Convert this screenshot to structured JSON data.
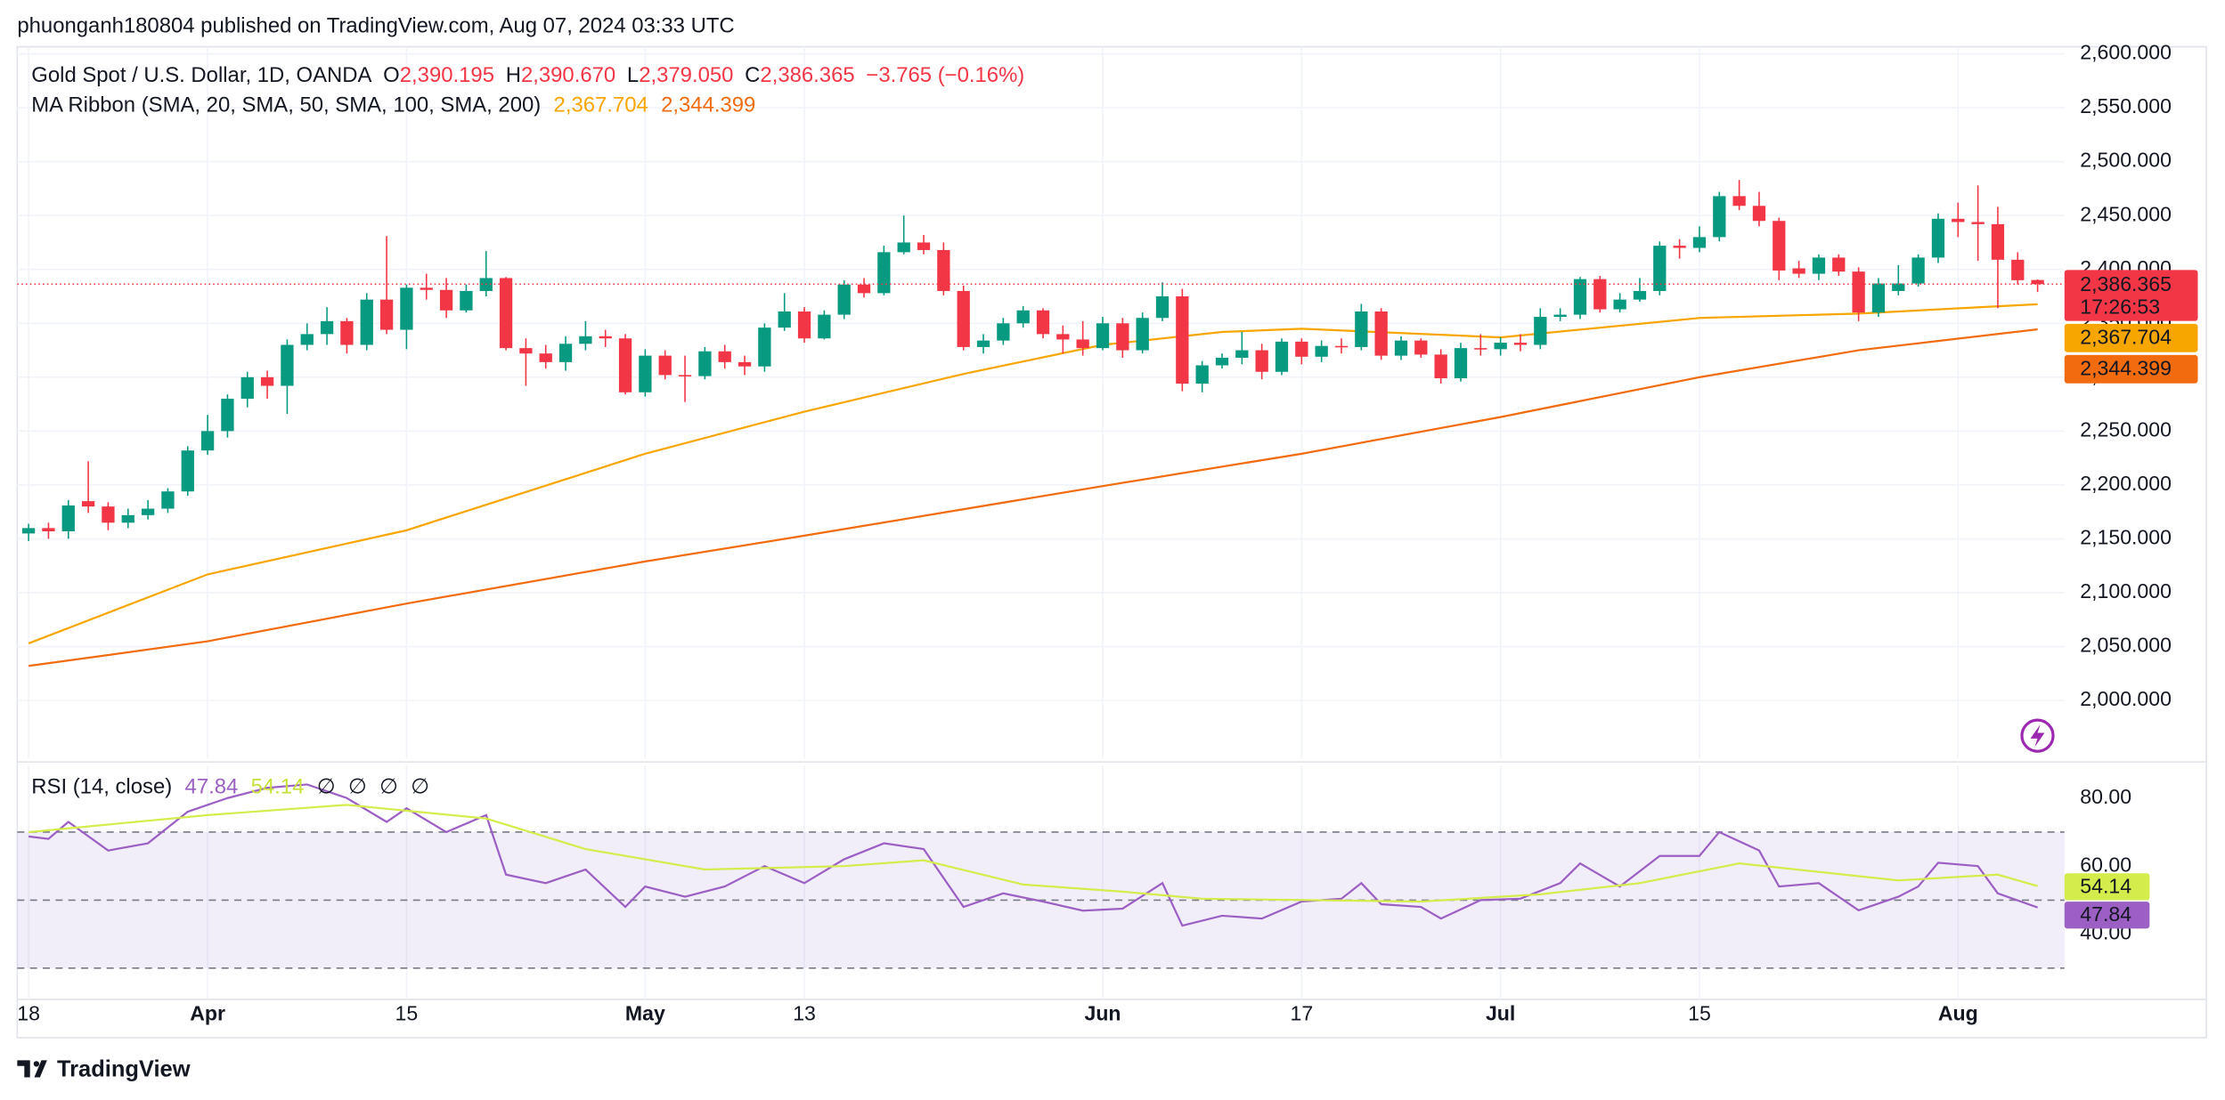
{
  "header": {
    "text": "phuonganh180804 published on TradingView.com, Aug 07, 2024 03:33 UTC"
  },
  "footer": {
    "logo": "TradingView"
  },
  "chart_data": [
    {
      "type": "candlestick",
      "title": "Gold Spot / U.S. Dollar, 1D, OANDA",
      "legend": {
        "items": [
          {
            "key": "O",
            "value": "2,390.195"
          },
          {
            "key": "H",
            "value": "2,390.670"
          },
          {
            "key": "L",
            "value": "2,379.050"
          },
          {
            "key": "C",
            "value": "2,386.365"
          }
        ],
        "change": "−3.765 (−0.16%)"
      },
      "up_color": "#089981",
      "down_color": "#f23645",
      "open": [
        2155,
        2160,
        2157,
        2185,
        2180,
        2165,
        2172,
        2178,
        2194,
        2232,
        2250,
        2280,
        2300,
        2292,
        2330,
        2340,
        2352,
        2330,
        2372,
        2344,
        2383,
        2381,
        2362,
        2380,
        2392,
        2327,
        2322,
        2314,
        2331,
        2338,
        2336,
        2286,
        2320,
        2302,
        2301,
        2324,
        2314,
        2310,
        2346,
        2361,
        2336,
        2358,
        2386,
        2378,
        2416,
        2425,
        2418,
        2380,
        2328,
        2334,
        2350,
        2362,
        2340,
        2335,
        2327,
        2350,
        2325,
        2355,
        2375,
        2294,
        2311,
        2318,
        2325,
        2305,
        2333,
        2319,
        2329,
        2328,
        2361,
        2320,
        2334,
        2321,
        2299,
        2327,
        2326,
        2332,
        2330,
        2356,
        2358,
        2391,
        2363,
        2372,
        2380,
        2422,
        2420,
        2430,
        2468,
        2459,
        2445,
        2401,
        2396,
        2411,
        2398,
        2360,
        2380,
        2387,
        2411,
        2447,
        2444,
        2442,
        2409,
        2390.195
      ],
      "high": [
        2164,
        2165,
        2186,
        2222,
        2184,
        2178,
        2186,
        2197,
        2236,
        2265,
        2284,
        2305,
        2306,
        2335,
        2350,
        2365,
        2355,
        2378,
        2431,
        2386,
        2396,
        2392,
        2386,
        2417,
        2393,
        2336,
        2330,
        2338,
        2352,
        2344,
        2340,
        2326,
        2325,
        2320,
        2328,
        2330,
        2320,
        2350,
        2378,
        2365,
        2362,
        2390,
        2392,
        2422,
        2450,
        2432,
        2425,
        2385,
        2340,
        2355,
        2366,
        2364,
        2348,
        2352,
        2356,
        2355,
        2360,
        2388,
        2382,
        2315,
        2322,
        2342,
        2331,
        2336,
        2336,
        2334,
        2336,
        2368,
        2364,
        2338,
        2336,
        2326,
        2332,
        2340,
        2337,
        2340,
        2364,
        2364,
        2393,
        2394,
        2378,
        2392,
        2426,
        2428,
        2440,
        2472,
        2483,
        2472,
        2448,
        2408,
        2414,
        2414,
        2402,
        2392,
        2404,
        2414,
        2452,
        2462,
        2478,
        2458,
        2416,
        2390.67
      ],
      "low": [
        2148,
        2150,
        2150,
        2174,
        2158,
        2160,
        2168,
        2174,
        2190,
        2228,
        2244,
        2272,
        2280,
        2266,
        2325,
        2330,
        2322,
        2325,
        2340,
        2326,
        2372,
        2355,
        2360,
        2375,
        2325,
        2292,
        2308,
        2306,
        2325,
        2328,
        2284,
        2282,
        2298,
        2277,
        2298,
        2308,
        2302,
        2305,
        2343,
        2332,
        2335,
        2354,
        2374,
        2376,
        2414,
        2414,
        2376,
        2325,
        2322,
        2330,
        2346,
        2336,
        2322,
        2320,
        2325,
        2318,
        2322,
        2352,
        2287,
        2286,
        2308,
        2312,
        2298,
        2302,
        2312,
        2314,
        2322,
        2325,
        2316,
        2316,
        2318,
        2294,
        2296,
        2320,
        2320,
        2324,
        2326,
        2352,
        2354,
        2360,
        2360,
        2370,
        2376,
        2410,
        2416,
        2426,
        2455,
        2440,
        2390,
        2392,
        2390,
        2394,
        2352,
        2356,
        2376,
        2384,
        2406,
        2430,
        2408,
        2364,
        2386,
        2379.05
      ],
      "close": [
        2160,
        2157,
        2181,
        2180,
        2165,
        2172,
        2178,
        2194,
        2232,
        2250,
        2280,
        2300,
        2292,
        2330,
        2340,
        2352,
        2330,
        2372,
        2344,
        2383,
        2381,
        2362,
        2380,
        2392,
        2327,
        2322,
        2314,
        2331,
        2338,
        2336,
        2286,
        2320,
        2302,
        2301,
        2324,
        2314,
        2310,
        2346,
        2361,
        2336,
        2358,
        2386,
        2378,
        2416,
        2425,
        2418,
        2380,
        2328,
        2334,
        2350,
        2362,
        2340,
        2335,
        2327,
        2350,
        2325,
        2355,
        2375,
        2294,
        2311,
        2318,
        2325,
        2305,
        2333,
        2319,
        2329,
        2328,
        2361,
        2320,
        2334,
        2321,
        2299,
        2327,
        2326,
        2332,
        2330,
        2356,
        2358,
        2391,
        2363,
        2372,
        2380,
        2422,
        2420,
        2430,
        2468,
        2459,
        2445,
        2399,
        2396,
        2411,
        2398,
        2360,
        2387,
        2387,
        2411,
        2447,
        2444,
        2442,
        2409,
        2390,
        2386.365
      ],
      "last_price": {
        "value": 2386.365,
        "countdown": "17:26:53",
        "color": "#f23645"
      },
      "overlay": {
        "title": "MA Ribbon (SMA, 20, SMA, 50, SMA, 100, SMA, 200)",
        "series": [
          {
            "color": "#f7a600",
            "x": [
              0,
              9,
              19,
              31,
              39,
              47,
              54,
              60,
              64,
              74,
              84,
              92,
              101
            ],
            "values": [
              2053,
              2117,
              2158,
              2229,
              2268,
              2303,
              2330,
              2342,
              2345,
              2337,
              2355,
              2359,
              2367.704
            ],
            "value_label": "2,367.704"
          },
          {
            "color": "#f26b0f",
            "x": [
              0,
              9,
              19,
              31,
              39,
              54,
              64,
              74,
              84,
              92,
              101
            ],
            "values": [
              2032,
              2055,
              2090,
              2129,
              2153,
              2199,
              2229,
              2263,
              2300,
              2325,
              2344.399
            ],
            "value_label": "2,344.399"
          }
        ]
      },
      "xlim": [
        -0.57,
        102.35
      ],
      "xticks": [
        {
          "value": 0,
          "label": "18"
        },
        {
          "value": 9,
          "label": "Apr"
        },
        {
          "value": 19,
          "label": "15"
        },
        {
          "value": 31,
          "label": "May"
        },
        {
          "value": 39,
          "label": "13"
        },
        {
          "value": 54,
          "label": "Jun"
        },
        {
          "value": 64,
          "label": "17"
        },
        {
          "value": 74,
          "label": "Jul"
        },
        {
          "value": 84,
          "label": "15"
        },
        {
          "value": 97,
          "label": "Aug"
        }
      ],
      "ylim": [
        1946.3,
        2606.6
      ],
      "yticks": [
        {
          "value": 2000,
          "label": "2,000.000"
        },
        {
          "value": 2050,
          "label": "2,050.000"
        },
        {
          "value": 2100,
          "label": "2,100.000"
        },
        {
          "value": 2150,
          "label": "2,150.000"
        },
        {
          "value": 2200,
          "label": "2,200.000"
        },
        {
          "value": 2250,
          "label": "2,250.000"
        },
        {
          "value": 2300,
          "label": "2,300.000"
        },
        {
          "value": 2350,
          "label": "2,350.000"
        },
        {
          "value": 2400,
          "label": "2,400.000"
        },
        {
          "value": 2450,
          "label": "2,450.000"
        },
        {
          "value": 2500,
          "label": "2,500.000"
        },
        {
          "value": 2550,
          "label": "2,550.000"
        },
        {
          "value": 2600,
          "label": "2,600.000"
        }
      ],
      "grid": true
    },
    {
      "type": "line",
      "title": "RSI (14, close)",
      "series": [
        {
          "color": "#9c5fc4",
          "x": [
            0,
            1,
            2,
            4,
            6,
            8,
            10,
            12,
            14,
            16,
            18,
            19,
            21,
            23,
            24,
            26,
            28,
            30,
            31,
            33,
            35,
            37,
            39,
            41,
            43,
            45,
            47,
            49,
            51,
            53,
            55,
            57,
            58,
            60,
            62,
            64,
            66,
            67,
            68,
            70,
            71,
            73,
            75,
            77,
            78,
            80,
            82,
            84,
            85,
            87,
            88,
            90,
            92,
            94,
            95,
            96,
            98,
            99,
            101
          ],
          "values": [
            68.7,
            68,
            73,
            64.6,
            66.7,
            76,
            80,
            83,
            84,
            80,
            73,
            77,
            70,
            75,
            57.5,
            55,
            59,
            48,
            54,
            51,
            54,
            60,
            55,
            62,
            66.7,
            65,
            48,
            52,
            49.6,
            46.9,
            47.5,
            55,
            42.5,
            45.4,
            44.6,
            49.6,
            50.4,
            55,
            48.8,
            48,
            44.6,
            50,
            50.4,
            55,
            60.8,
            54,
            63,
            63,
            70,
            64.6,
            54,
            55,
            47,
            51,
            54,
            61,
            60,
            52,
            47.84
          ],
          "value_label": "47.84",
          "label_text_color": "#ffffff"
        },
        {
          "color": "#d4ec4c",
          "x": [
            0,
            9,
            16,
            23,
            28,
            34,
            41,
            45,
            50,
            55,
            59,
            70,
            76,
            81,
            86,
            94,
            99,
            101
          ],
          "values": [
            70,
            75,
            78,
            74,
            65,
            59,
            60,
            61.7,
            54.6,
            52.5,
            50.4,
            49.6,
            51.7,
            55,
            60.8,
            55.8,
            57.5,
            54.14
          ],
          "value_label": "54.14",
          "label_text_color": "#131722"
        }
      ],
      "na_labels": [
        "∅",
        "∅",
        "∅",
        "∅"
      ],
      "xlim": [
        -0.57,
        102.35
      ],
      "ylim": [
        20.83,
        89.58
      ],
      "yticks": [
        {
          "value": 40,
          "label": "40.00"
        },
        {
          "value": 60,
          "label": "60.00"
        },
        {
          "value": 80,
          "label": "80.00"
        }
      ],
      "bands": [
        30,
        70
      ],
      "midline": 50,
      "band_color": "#7e57c2",
      "grid": true
    }
  ]
}
